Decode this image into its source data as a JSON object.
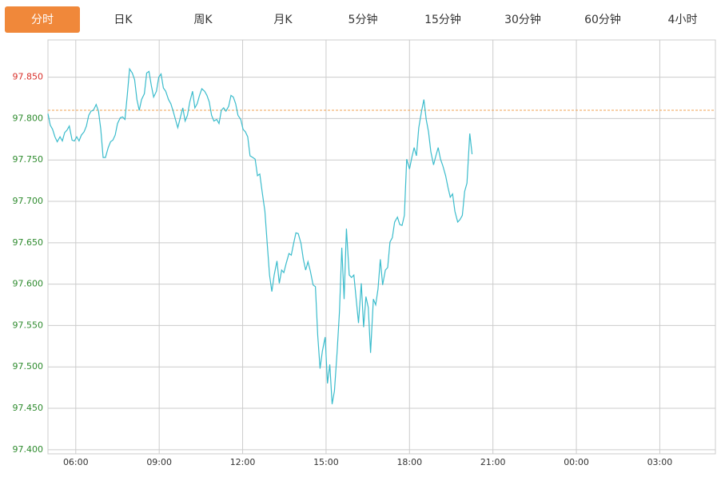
{
  "tabs": {
    "items": [
      "分时",
      "日K",
      "周K",
      "月K",
      "5分钟",
      "15分钟",
      "30分钟",
      "60分钟",
      "4小时"
    ],
    "active": 0
  },
  "chart_data": {
    "type": "line",
    "x": [
      0,
      5,
      10,
      15,
      20,
      26,
      31,
      36,
      41,
      46,
      52,
      57,
      62,
      67,
      72,
      78,
      83,
      88,
      93,
      98,
      104,
      109,
      114,
      119,
      124,
      130,
      135,
      140,
      145,
      150,
      156,
      161,
      166,
      171,
      176,
      182,
      187,
      192,
      197,
      202,
      208,
      213,
      218,
      223,
      228,
      234,
      239,
      244,
      249,
      254,
      260,
      265,
      270,
      275,
      280,
      286,
      291,
      296,
      301,
      306,
      312,
      317,
      322,
      327,
      332,
      338,
      343,
      348,
      353,
      358,
      364,
      369,
      374,
      379,
      384,
      390,
      395,
      400,
      405,
      410,
      416,
      421,
      426,
      431,
      436,
      442,
      447,
      452,
      457,
      462,
      468,
      473,
      478,
      483,
      488,
      494,
      499,
      504,
      509,
      514,
      520,
      525,
      530,
      535,
      540,
      546,
      551,
      556,
      561,
      566,
      572,
      577,
      582,
      587,
      592,
      598,
      603,
      608,
      613,
      618,
      624,
      629,
      634,
      639,
      644,
      650,
      655,
      660,
      665,
      670,
      676,
      681,
      686,
      691,
      696,
      702,
      707,
      712,
      717,
      722,
      728,
      733,
      738,
      743,
      748,
      754,
      759,
      764,
      769,
      774,
      780,
      785,
      790,
      795,
      800,
      806,
      811,
      816,
      821,
      826,
      832,
      837,
      842,
      847,
      852,
      858,
      863,
      868,
      873,
      878,
      884,
      889,
      894,
      899,
      904,
      910,
      915
    ],
    "series": [
      {
        "color": "#3bbccc",
        "values": [
          97.806,
          97.792,
          97.787,
          97.778,
          97.772,
          97.778,
          97.773,
          97.783,
          97.786,
          97.791,
          97.774,
          97.773,
          97.778,
          97.773,
          97.78,
          97.784,
          97.791,
          97.804,
          97.809,
          97.81,
          97.817,
          97.809,
          97.787,
          97.753,
          97.753,
          97.765,
          97.772,
          97.774,
          97.78,
          97.794,
          97.801,
          97.802,
          97.799,
          97.828,
          97.86,
          97.855,
          97.847,
          97.823,
          97.81,
          97.823,
          97.83,
          97.855,
          97.857,
          97.84,
          97.826,
          97.833,
          97.85,
          97.854,
          97.837,
          97.833,
          97.823,
          97.818,
          97.809,
          97.799,
          97.789,
          97.802,
          97.813,
          97.797,
          97.804,
          97.82,
          97.833,
          97.813,
          97.818,
          97.828,
          97.836,
          97.833,
          97.828,
          97.82,
          97.804,
          97.797,
          97.799,
          97.794,
          97.81,
          97.813,
          97.809,
          97.815,
          97.828,
          97.826,
          97.818,
          97.804,
          97.799,
          97.787,
          97.784,
          97.778,
          97.755,
          97.753,
          97.751,
          97.731,
          97.733,
          97.712,
          97.688,
          97.649,
          97.611,
          97.591,
          97.611,
          97.628,
          97.601,
          97.617,
          97.614,
          97.625,
          97.637,
          97.635,
          97.649,
          97.662,
          97.661,
          97.649,
          97.63,
          97.617,
          97.627,
          97.616,
          97.599,
          97.597,
          97.538,
          97.498,
          97.519,
          97.536,
          97.48,
          97.503,
          97.455,
          97.471,
          97.519,
          97.567,
          97.644,
          97.582,
          97.667,
          97.611,
          97.608,
          97.611,
          97.582,
          97.553,
          97.601,
          97.548,
          97.585,
          97.572,
          97.517,
          97.582,
          97.575,
          97.594,
          97.63,
          97.599,
          97.617,
          97.62,
          97.651,
          97.656,
          97.675,
          97.681,
          97.672,
          97.671,
          97.683,
          97.751,
          97.739,
          97.753,
          97.765,
          97.755,
          97.789,
          97.809,
          97.823,
          97.799,
          97.784,
          97.76,
          97.744,
          97.755,
          97.765,
          97.751,
          97.743,
          97.731,
          97.717,
          97.705,
          97.709,
          97.688,
          97.675,
          97.678,
          97.683,
          97.712,
          97.722,
          97.782,
          97.757
        ]
      }
    ],
    "reference_line": 97.81,
    "reference_color": "#f0a050",
    "above_color": "#d9312b",
    "below_color": "#2e8b2e",
    "xlim": [
      0,
      1440
    ],
    "xticks": [
      {
        "value": 60,
        "label": "06:00"
      },
      {
        "value": 240,
        "label": "09:00"
      },
      {
        "value": 420,
        "label": "12:00"
      },
      {
        "value": 600,
        "label": "15:00"
      },
      {
        "value": 780,
        "label": "18:00"
      },
      {
        "value": 960,
        "label": "21:00"
      },
      {
        "value": 1140,
        "label": "00:00"
      },
      {
        "value": 1320,
        "label": "03:00"
      }
    ],
    "ylim": [
      97.395,
      97.895
    ],
    "yticks": [
      {
        "value": 97.4,
        "label": "97.400"
      },
      {
        "value": 97.45,
        "label": "97.450"
      },
      {
        "value": 97.5,
        "label": "97.500"
      },
      {
        "value": 97.55,
        "label": "97.550"
      },
      {
        "value": 97.6,
        "label": "97.600"
      },
      {
        "value": 97.65,
        "label": "97.650"
      },
      {
        "value": 97.7,
        "label": "97.700"
      },
      {
        "value": 97.75,
        "label": "97.750"
      },
      {
        "value": 97.8,
        "label": "97.800"
      },
      {
        "value": 97.85,
        "label": "97.850"
      }
    ],
    "grid": true
  }
}
